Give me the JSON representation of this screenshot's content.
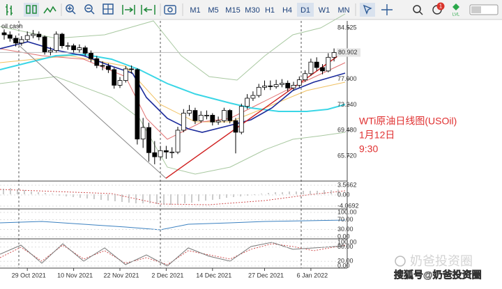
{
  "toolbar": {
    "timeframes": [
      "M1",
      "M5",
      "M15",
      "M30",
      "H1",
      "H4",
      "D1",
      "W1",
      "MN"
    ],
    "active_timeframe": "D1",
    "notification_count": "1",
    "level_badge": "LVL"
  },
  "chart_data": {
    "type": "candlestick",
    "symbol_label": "oil cash",
    "up_color": "#ffffff",
    "down_color": "#000000",
    "x": [
      "25 Oct 2021",
      "26 Oct 2021",
      "27 Oct 2021",
      "28 Oct 2021",
      "29 Oct 2021",
      "1 Nov 2021",
      "2 Nov 2021",
      "3 Nov 2021",
      "4 Nov 2021",
      "5 Nov 2021",
      "8 Nov 2021",
      "9 Nov 2021",
      "10 Nov 2021",
      "11 Nov 2021",
      "12 Nov 2021",
      "15 Nov 2021",
      "16 Nov 2021",
      "17 Nov 2021",
      "18 Nov 2021",
      "19 Nov 2021",
      "22 Nov 2021",
      "23 Nov 2021",
      "24 Nov 2021",
      "25 Nov 2021",
      "26 Nov 2021",
      "29 Nov 2021",
      "30 Nov 2021",
      "1 Dec 2021",
      "2 Dec 2021",
      "3 Dec 2021",
      "6 Dec 2021",
      "7 Dec 2021",
      "8 Dec 2021",
      "9 Dec 2021",
      "10 Dec 2021",
      "13 Dec 2021",
      "14 Dec 2021",
      "15 Dec 2021",
      "16 Dec 2021",
      "17 Dec 2021",
      "20 Dec 2021",
      "21 Dec 2021",
      "22 Dec 2021",
      "23 Dec 2021",
      "24 Dec 2021",
      "27 Dec 2021",
      "28 Dec 2021",
      "29 Dec 2021",
      "30 Dec 2021",
      "31 Dec 2021",
      "3 Jan 2022",
      "4 Jan 2022",
      "5 Jan 2022",
      "6 Jan 2022",
      "7 Jan 2022",
      "10 Jan 2022",
      "11 Jan 2022",
      "12 Jan 2022"
    ],
    "open": [
      83.8,
      83.5,
      83.0,
      82.3,
      82.8,
      83.4,
      83.6,
      83.2,
      81.0,
      81.2,
      83.6,
      81.9,
      81.9,
      81.3,
      81.6,
      80.8,
      80.0,
      79.0,
      78.9,
      78.4,
      76.1,
      76.8,
      78.5,
      78.4,
      68.2,
      69.9,
      66.2,
      65.6,
      66.5,
      66.3,
      66.3,
      69.5,
      72.0,
      72.4,
      70.9,
      71.7,
      71.7,
      70.7,
      70.9,
      72.4,
      70.9,
      69.2,
      73.0,
      74.2,
      74.6,
      75.8,
      76.0,
      75.9,
      76.2,
      76.4,
      75.7,
      76.1,
      76.9,
      77.8,
      79.5,
      78.7,
      78.2,
      80.2
    ],
    "high": [
      84.3,
      84.0,
      83.4,
      83.3,
      84.0,
      84.2,
      84.0,
      83.4,
      81.7,
      84.0,
      83.8,
      82.4,
      82.2,
      82.1,
      81.9,
      81.2,
      80.4,
      79.6,
      79.3,
      78.7,
      77.3,
      78.9,
      79.0,
      78.6,
      71.3,
      70.6,
      67.9,
      67.2,
      67.2,
      67.0,
      70.0,
      72.6,
      73.2,
      72.8,
      72.3,
      72.4,
      72.0,
      71.5,
      72.8,
      72.6,
      71.3,
      73.4,
      74.8,
      75.2,
      76.3,
      76.8,
      76.8,
      76.9,
      77.0,
      76.8,
      76.6,
      77.4,
      78.3,
      80.0,
      80.2,
      79.2,
      80.8,
      81.5
    ],
    "low": [
      82.8,
      82.5,
      81.8,
      81.9,
      82.5,
      83.0,
      82.7,
      80.6,
      80.5,
      80.9,
      81.5,
      81.3,
      80.9,
      80.9,
      80.4,
      79.5,
      78.6,
      78.3,
      77.9,
      75.6,
      75.7,
      76.5,
      77.8,
      67.4,
      66.9,
      64.9,
      64.5,
      65.2,
      65.3,
      65.4,
      66.0,
      69.2,
      71.6,
      70.4,
      70.6,
      71.1,
      70.2,
      70.3,
      70.6,
      70.5,
      66.1,
      68.9,
      72.6,
      73.8,
      74.3,
      75.4,
      75.4,
      75.6,
      75.8,
      75.2,
      75.3,
      75.8,
      76.6,
      77.5,
      78.2,
      77.7,
      78.0,
      79.6
    ],
    "close": [
      83.5,
      83.0,
      82.3,
      82.8,
      83.4,
      83.6,
      83.2,
      81.0,
      81.2,
      83.6,
      81.9,
      81.9,
      81.3,
      81.6,
      80.8,
      80.0,
      79.0,
      78.9,
      78.4,
      76.1,
      76.8,
      78.5,
      78.4,
      68.2,
      69.9,
      66.2,
      65.6,
      66.5,
      66.3,
      66.3,
      69.5,
      72.0,
      72.4,
      70.9,
      71.7,
      71.7,
      70.7,
      70.9,
      72.4,
      70.9,
      69.2,
      73.0,
      74.2,
      74.6,
      75.8,
      76.0,
      75.9,
      76.2,
      76.4,
      75.7,
      76.1,
      76.9,
      77.8,
      79.5,
      78.7,
      78.2,
      80.2,
      80.9
    ],
    "ylim": [
      62.24,
      85.24
    ],
    "yticks": [
      84.525,
      {
        "value": 77,
        "label": "77.000"
      },
      {
        "value": 73.24,
        "label": "73.240"
      },
      {
        "value": 69.48,
        "label": "69.480"
      },
      {
        "value": 65.72,
        "label": "65.720"
      }
    ],
    "current_price": 80.902,
    "xticks": [
      "29 Oct 2021",
      "10 Nov 2021",
      "22 Nov 2021",
      "2 Dec 2021",
      "14 Dec 2021",
      "27 Dec 2021",
      "6 Jan 2022"
    ],
    "macd_panel": {
      "ylim": [
        -4.0692,
        3.5662
      ],
      "yticks": [
        3.5662,
        {
          "value": 0,
          "label": "0.00"
        },
        -4.0692
      ]
    },
    "rsi_panel": {
      "ylim": [
        0,
        100
      ],
      "yticks": [
        {
          "value": 100,
          "label": "100.00"
        },
        {
          "value": 70,
          "label": "70.00"
        },
        {
          "value": 30,
          "label": "30.00"
        },
        {
          "value": 0,
          "label": "0.00"
        }
      ]
    },
    "stoch_panel": {
      "ylim": [
        0,
        100
      ],
      "yticks": [
        {
          "value": 100,
          "label": "100.00"
        },
        {
          "value": 80,
          "label": "80.00"
        },
        {
          "value": 20,
          "label": "20.00"
        },
        {
          "value": 0,
          "label": "0.00"
        }
      ]
    },
    "annotation": [
      "WTi原油日线图(USOil)",
      "1月12日",
      "9:30"
    ]
  },
  "watermark": "奶爸投资圈",
  "credit": "搜狐号@奶爸投资圈"
}
